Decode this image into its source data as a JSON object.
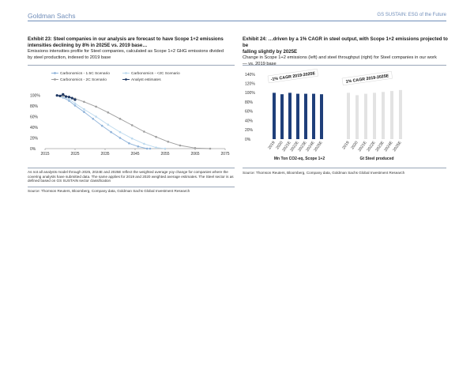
{
  "header": {
    "brand": "Goldman Sachs",
    "report": "GS SUSTAIN: ESG of the Future"
  },
  "exhibit23": {
    "title_line1": "Exhibit 23: Steel companies in our analysis are forecast to have Scope 1+2 emissions",
    "title_line2": "intensities declining by 8% in 2025E vs. 2019 base…",
    "sub_line1": "Emissions intensities profile for Steel companies, calculated as Scope 1+2 GHG emissions divided",
    "sub_line2": "by steel production, indexed to 2019 base",
    "footnote_line1": "As not all analysts model through 2025, 2024E and 2025E reflect the weighted average yoy change for companies where the",
    "footnote_line2": "covering analysts have submitted data. The same applies for 2019 and 2020 weighted average estimates. The Steel sector is as",
    "footnote_line3": "defined based on GS SUSTAIN sector classification",
    "source": "Source: Thomson Reuters, Bloomberg, Company data, Goldman Sachs Global Investment Research"
  },
  "exhibit24": {
    "title_line1": "Exhibit 24: …driven by a 1% CAGR in steel output, with Scope 1+2 emissions projected to be",
    "title_line2": "falling slightly by 2025E",
    "sub_line1": "Change in Scope 1+2 emissions (left) and steel throughput (right) for Steel companies in our work",
    "sub_line2": "— vs. 2019 base",
    "source": "Source: Thomson Reuters, Bloomberg, Company data, Goldman Sachs Global Investment Research"
  },
  "chart_data": [
    {
      "type": "line",
      "legend": [
        "Carbonomics - 1.5C Scenario",
        "Carbonomics - <2C Scenario",
        "Carbonomics - 2C Scenario",
        "Analyst estimates"
      ],
      "x_ticks": [
        "2015",
        "2025",
        "2035",
        "2045",
        "2055",
        "2065",
        "2075"
      ],
      "y_ticks": [
        "0%",
        "20%",
        "40%",
        "60%",
        "80%",
        "100%"
      ],
      "ylim": [
        0,
        110
      ],
      "xlim": [
        2015,
        2075
      ],
      "colors": {
        "s15": "#8eb2d9",
        "s2lt": "#bcd9ee",
        "s2": "#9e9e9e",
        "analyst": "#1f3863"
      },
      "series": [
        {
          "name": "Carbonomics - 1.5C Scenario",
          "x": [
            2019,
            2021,
            2023,
            2025,
            2028,
            2031,
            2034,
            2037,
            2040,
            2043,
            2046,
            2049,
            2050
          ],
          "values": [
            100,
            96,
            90,
            81,
            69,
            56,
            43,
            31,
            20,
            10,
            4,
            0,
            0
          ]
        },
        {
          "name": "Carbonomics - <2C Scenario",
          "x": [
            2019,
            2021,
            2023,
            2025,
            2028,
            2032,
            2036,
            2040,
            2044,
            2048,
            2052,
            2055
          ],
          "values": [
            100,
            97,
            93,
            85,
            74,
            60,
            45,
            31,
            19,
            9,
            2,
            0
          ]
        },
        {
          "name": "Carbonomics - 2C Scenario",
          "x": [
            2019,
            2021,
            2023,
            2025,
            2028,
            2032,
            2036,
            2040,
            2044,
            2048,
            2052,
            2056,
            2060,
            2065,
            2070
          ],
          "values": [
            100,
            99,
            97,
            94,
            88,
            79,
            68,
            56,
            44,
            32,
            22,
            13,
            6,
            1,
            0
          ]
        },
        {
          "name": "Analyst estimates",
          "x": [
            2019,
            2020,
            2021,
            2022,
            2023,
            2024,
            2025
          ],
          "values": [
            100,
            99,
            102,
            98,
            97,
            95,
            92
          ]
        }
      ]
    },
    {
      "type": "bar",
      "title": "Mn Ton CO2-eq, Scope 1+2",
      "categories": [
        "2019",
        "2020",
        "2021E",
        "2022E",
        "2023E",
        "2024E",
        "2025E"
      ],
      "values": [
        100,
        97,
        100,
        98,
        98,
        98,
        97
      ],
      "y_ticks": [
        "0%",
        "20%",
        "40%",
        "60%",
        "80%",
        "100%",
        "120%",
        "140%"
      ],
      "ylim": [
        0,
        140
      ],
      "color": "#1f3f7a",
      "annotation": "-1% CAGR 2019-2025E"
    },
    {
      "type": "bar",
      "title": "Gt Steel produced",
      "categories": [
        "2019",
        "2020",
        "2021E",
        "2022E",
        "2023E",
        "2024E",
        "2025E"
      ],
      "values": [
        100,
        95,
        98,
        100,
        102,
        104,
        106
      ],
      "color": "#e3e3e3",
      "annotation": "1% CAGR 2019-2025E"
    }
  ]
}
